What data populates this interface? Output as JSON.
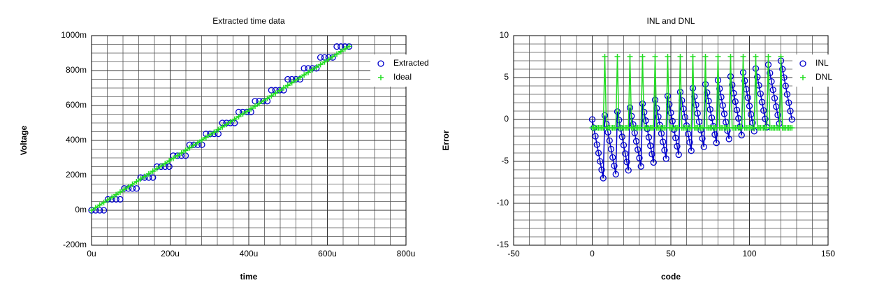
{
  "chart_data": [
    {
      "type": "line",
      "title": "Extracted time data",
      "xlabel": "time",
      "ylabel": "Voltage",
      "xlim": [
        0,
        800
      ],
      "xticks": [
        {
          "value": 0,
          "label": "0u"
        },
        {
          "value": 200,
          "label": "200u"
        },
        {
          "value": 400,
          "label": "400u"
        },
        {
          "value": 600,
          "label": "600u"
        },
        {
          "value": 800,
          "label": "800u"
        }
      ],
      "ylim": [
        -200,
        1000
      ],
      "yticks": [
        {
          "value": -200,
          "label": "-200m"
        },
        {
          "value": 0,
          "label": "0m"
        },
        {
          "value": 200,
          "label": "200m"
        },
        {
          "value": 400,
          "label": "400m"
        },
        {
          "value": 600,
          "label": "600m"
        },
        {
          "value": 800,
          "label": "800m"
        },
        {
          "value": 1000,
          "label": "1000m"
        }
      ],
      "grid": true,
      "legend": "upper right",
      "x": [
        0,
        10.4,
        20.8,
        31.2,
        41.6,
        52,
        62.4,
        72.8,
        83.2,
        93.6,
        104,
        114.4,
        124.8,
        135.2,
        145.6,
        156,
        166.4,
        176.8,
        187.2,
        197.6,
        208,
        218.4,
        228.8,
        239.2,
        249.6,
        260,
        270.4,
        280.8,
        291.2,
        301.6,
        312,
        322.4,
        332.8,
        343.2,
        353.6,
        364,
        374.4,
        384.8,
        395.2,
        405.6,
        416,
        426.4,
        436.8,
        447.2,
        457.6,
        468,
        478.4,
        488.8,
        499.2,
        509.6,
        520,
        530.4,
        540.8,
        551.2,
        561.6,
        572,
        582.4,
        592.8,
        603.2,
        613.6,
        624,
        634.4,
        644.8,
        655.2
      ],
      "series": [
        {
          "name": "Extracted",
          "color": "#0000cc",
          "marker": "o",
          "line": false,
          "values": [
            0,
            0,
            0,
            0,
            62.5,
            62.5,
            62.5,
            62.5,
            125,
            125,
            125,
            125,
            187.5,
            187.5,
            187.5,
            187.5,
            250,
            250,
            250,
            250,
            312.5,
            312.5,
            312.5,
            312.5,
            375,
            375,
            375,
            375,
            437.5,
            437.5,
            437.5,
            437.5,
            500,
            500,
            500,
            500,
            562.5,
            562.5,
            562.5,
            562.5,
            625,
            625,
            625,
            625,
            687.5,
            687.5,
            687.5,
            687.5,
            750,
            750,
            750,
            750,
            812.5,
            812.5,
            812.5,
            812.5,
            875,
            875,
            875,
            875,
            937.5,
            937.5,
            937.5,
            937.5
          ]
        },
        {
          "name": "Ideal",
          "color": "#22dd22",
          "marker": "+",
          "line": true,
          "values": [
            0,
            14.9,
            29.8,
            44.7,
            59.6,
            74.5,
            89.4,
            104.3,
            119.2,
            134.1,
            149,
            163.9,
            178.8,
            193.7,
            208.6,
            223.5,
            238.4,
            253.3,
            268.2,
            283.1,
            298,
            312.9,
            327.8,
            342.7,
            357.6,
            372.5,
            387.4,
            402.3,
            417.2,
            432.1,
            447,
            461.9,
            476.8,
            491.7,
            506.6,
            521.5,
            536.4,
            551.3,
            566.2,
            581.1,
            596,
            610.9,
            625.8,
            640.7,
            655.6,
            670.5,
            685.4,
            700.3,
            715.2,
            730.1,
            745,
            759.9,
            774.8,
            789.7,
            804.6,
            819.5,
            834.4,
            849.3,
            864.2,
            879.1,
            894,
            908.9,
            923.8,
            938.7
          ]
        }
      ]
    },
    {
      "type": "line",
      "title": "INL and DNL",
      "xlabel": "code",
      "ylabel": "Error",
      "xlim": [
        -50,
        150
      ],
      "xticks": [
        -50,
        0,
        50,
        100,
        150
      ],
      "ylim": [
        -15,
        10
      ],
      "yticks": [
        -15,
        -10,
        -5,
        0,
        5,
        10
      ],
      "grid": true,
      "legend": "upper right",
      "x": [
        0,
        1,
        2,
        3,
        4,
        5,
        6,
        7,
        8,
        9,
        10,
        11,
        12,
        13,
        14,
        15,
        16,
        17,
        18,
        19,
        20,
        21,
        22,
        23,
        24,
        25,
        26,
        27,
        28,
        29,
        30,
        31,
        32,
        33,
        34,
        35,
        36,
        37,
        38,
        39,
        40,
        41,
        42,
        43,
        44,
        45,
        46,
        47,
        48,
        49,
        50,
        51,
        52,
        53,
        54,
        55,
        56,
        57,
        58,
        59,
        60,
        61,
        62,
        63,
        64,
        65,
        66,
        67,
        68,
        69,
        70,
        71,
        72,
        73,
        74,
        75,
        76,
        77,
        78,
        79,
        80,
        81,
        82,
        83,
        84,
        85,
        86,
        87,
        88,
        89,
        90,
        91,
        92,
        93,
        94,
        95,
        96,
        97,
        98,
        99,
        100,
        101,
        102,
        103,
        104,
        105,
        106,
        107,
        108,
        109,
        110,
        111,
        112,
        113,
        114,
        115,
        116,
        117,
        118,
        119,
        120,
        121,
        122,
        123,
        124,
        125,
        126,
        127
      ],
      "series": [
        {
          "name": "INL",
          "color": "#0000cc",
          "marker": "o",
          "line": true,
          "values": [
            0,
            -1,
            -2,
            -3,
            -4,
            -5,
            -6,
            -7,
            0.47,
            -0.53,
            -1.53,
            -2.53,
            -3.53,
            -4.53,
            -5.53,
            -6.53,
            0.93,
            -0.07,
            -1.07,
            -2.07,
            -3.07,
            -4.07,
            -5.07,
            -6.07,
            1.4,
            0.4,
            -0.6,
            -1.6,
            -2.6,
            -3.6,
            -4.6,
            -5.6,
            1.87,
            0.87,
            -0.13,
            -1.13,
            -2.13,
            -3.13,
            -4.13,
            -5.13,
            2.33,
            1.33,
            0.33,
            -0.67,
            -1.67,
            -2.67,
            -3.67,
            -4.67,
            2.8,
            1.8,
            0.8,
            -0.2,
            -1.2,
            -2.2,
            -3.2,
            -4.2,
            3.27,
            2.27,
            1.27,
            0.27,
            -0.73,
            -1.73,
            -2.73,
            -3.73,
            3.73,
            2.73,
            1.73,
            0.73,
            -0.27,
            -1.27,
            -2.27,
            -3.27,
            4.2,
            3.2,
            2.2,
            1.2,
            0.2,
            -0.8,
            -1.8,
            -2.8,
            4.67,
            3.67,
            2.67,
            1.67,
            0.67,
            -0.33,
            -1.33,
            -2.33,
            5.13,
            4.13,
            3.13,
            2.13,
            1.13,
            0.13,
            -0.87,
            -1.87,
            5.6,
            4.6,
            3.6,
            2.6,
            1.6,
            0.6,
            -0.4,
            -1.4,
            6.07,
            5.07,
            4.07,
            3.07,
            2.07,
            1.07,
            0.07,
            -0.93,
            6.53,
            5.53,
            4.53,
            3.53,
            2.53,
            1.53,
            0.53,
            -0.47,
            7,
            6,
            5,
            4,
            3,
            2,
            1,
            0
          ]
        },
        {
          "name": "DNL",
          "color": "#22dd22",
          "marker": "+",
          "line": true,
          "values": [
            -1,
            -1,
            -1,
            -1,
            -1,
            -1,
            -1,
            -1,
            7.5,
            -1,
            -1,
            -1,
            -1,
            -1,
            -1,
            -1,
            7.5,
            -1,
            -1,
            -1,
            -1,
            -1,
            -1,
            -1,
            7.5,
            -1,
            -1,
            -1,
            -1,
            -1,
            -1,
            -1,
            7.5,
            -1,
            -1,
            -1,
            -1,
            -1,
            -1,
            -1,
            7.5,
            -1,
            -1,
            -1,
            -1,
            -1,
            -1,
            -1,
            7.5,
            -1,
            -1,
            -1,
            -1,
            -1,
            -1,
            -1,
            7.5,
            -1,
            -1,
            -1,
            -1,
            -1,
            -1,
            -1,
            7.5,
            -1,
            -1,
            -1,
            -1,
            -1,
            -1,
            -1,
            7.5,
            -1,
            -1,
            -1,
            -1,
            -1,
            -1,
            -1,
            7.5,
            -1,
            -1,
            -1,
            -1,
            -1,
            -1,
            -1,
            7.5,
            -1,
            -1,
            -1,
            -1,
            -1,
            -1,
            -1,
            7.5,
            -1,
            -1,
            -1,
            -1,
            -1,
            -1,
            -1,
            7.5,
            -1,
            -1,
            -1,
            -1,
            -1,
            -1,
            -1,
            7.5,
            -1,
            -1,
            -1,
            -1,
            -1,
            -1,
            -1,
            7.5,
            -1,
            -1,
            -1,
            -1,
            -1,
            -1,
            -1
          ]
        }
      ]
    }
  ]
}
